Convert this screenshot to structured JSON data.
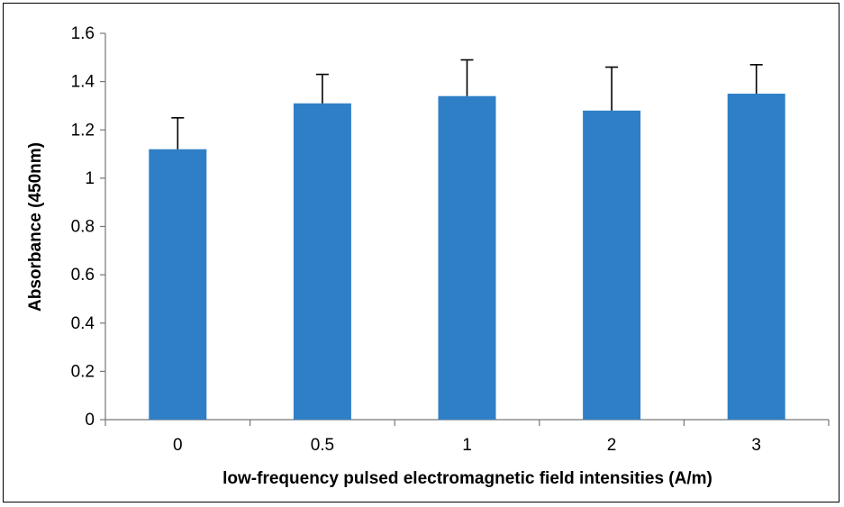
{
  "chart_data": {
    "type": "bar",
    "title": "",
    "xlabel": "low-frequency pulsed electromagnetic field intensities  (A/m)",
    "ylabel": "Absorbance (450nm)",
    "categories": [
      "0",
      "0.5",
      "1",
      "2",
      "3"
    ],
    "values": [
      1.12,
      1.31,
      1.34,
      1.28,
      1.35
    ],
    "error_upper": [
      0.13,
      0.12,
      0.15,
      0.18,
      0.12
    ],
    "ylim": [
      0,
      1.6
    ],
    "yticks": [
      "0",
      "0.2",
      "0.4",
      "0.6",
      "0.8",
      "1",
      "1.2",
      "1.4",
      "1.6"
    ],
    "grid": false,
    "legend": "none",
    "bar_color": "#2E7FC6"
  }
}
